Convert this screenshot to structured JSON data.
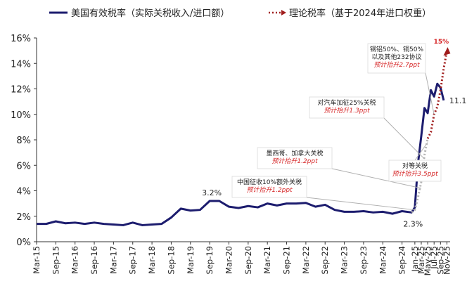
{
  "chart_data": {
    "type": "line",
    "legend_position": "top",
    "grid": false,
    "ylim": [
      0,
      16
    ],
    "y_ticks": [
      "0%",
      "2%",
      "4%",
      "6%",
      "8%",
      "10%",
      "12%",
      "14%",
      "16%"
    ],
    "x_ticks": [
      "Mar-15",
      "Sep-15",
      "Mar-16",
      "Sep-16",
      "Mar-17",
      "Sep-17",
      "Mar-18",
      "Sep-18",
      "Mar-19",
      "Sep-19",
      "Mar-20",
      "Sep-20",
      "Mar-21",
      "Sep-21",
      "Mar-22",
      "Sep-22",
      "Mar-23",
      "Sep-23",
      "Mar-24",
      "Sep-24",
      "Jan-25",
      "Mar-25",
      "May-25",
      "Jul-25",
      "Sep-25",
      "Nov-25"
    ],
    "series": [
      {
        "name": "美国有效税率（实际关税收入/进口额）",
        "color": "#1c1c6e",
        "style": "solid",
        "x": [
          "2015-03",
          "2015-06",
          "2015-09",
          "2015-12",
          "2016-03",
          "2016-06",
          "2016-09",
          "2016-12",
          "2017-03",
          "2017-06",
          "2017-09",
          "2017-12",
          "2018-03",
          "2018-06",
          "2018-09",
          "2018-12",
          "2019-03",
          "2019-06",
          "2019-09",
          "2019-12",
          "2020-03",
          "2020-06",
          "2020-09",
          "2020-12",
          "2021-03",
          "2021-06",
          "2021-09",
          "2021-12",
          "2022-03",
          "2022-06",
          "2022-09",
          "2022-12",
          "2023-03",
          "2023-06",
          "2023-09",
          "2023-12",
          "2024-03",
          "2024-06",
          "2024-09",
          "2024-12",
          "2025-01",
          "2025-02",
          "2025-03",
          "2025-04",
          "2025-05",
          "2025-06",
          "2025-07",
          "2025-08",
          "2025-09",
          "2025-10"
        ],
        "y": [
          1.4,
          1.4,
          1.6,
          1.45,
          1.5,
          1.4,
          1.5,
          1.4,
          1.35,
          1.3,
          1.5,
          1.3,
          1.35,
          1.4,
          1.9,
          2.6,
          2.45,
          2.5,
          3.2,
          3.2,
          2.75,
          2.65,
          2.8,
          2.7,
          3.0,
          2.85,
          3.0,
          3.0,
          3.05,
          2.75,
          2.9,
          2.5,
          2.35,
          2.35,
          2.4,
          2.3,
          2.35,
          2.2,
          2.4,
          2.3,
          2.7,
          6.2,
          8.3,
          10.5,
          10.1,
          11.9,
          11.4,
          12.4,
          12.1,
          11.1
        ]
      },
      {
        "name": "理论税率（基于2024年进口权重）",
        "color": "#a01c1c",
        "style": "dotted",
        "x": [
          "2024-12",
          "2025-01",
          "2025-02",
          "2025-03",
          "2025-04",
          "2025-05",
          "2025-06",
          "2025-07",
          "2025-08",
          "2025-09",
          "2025-10",
          "2025-11"
        ],
        "y": [
          2.3,
          2.5,
          3.5,
          4.7,
          6.8,
          8.1,
          8.6,
          10.0,
          10.6,
          11.9,
          13.6,
          15.0
        ]
      }
    ],
    "point_labels": [
      "3.2%",
      "2.3%",
      "11.1%",
      "15%"
    ],
    "annotations": [
      {
        "lines": [
          "中国征收10%额外关税",
          "预计抬升1.2ppt"
        ]
      },
      {
        "lines": [
          "墨西哥、加拿大关税",
          "预计抬升1.2ppt"
        ]
      },
      {
        "lines": [
          "对汽车加征25%关税",
          "预计抬升1.3ppt"
        ]
      },
      {
        "lines": [
          "钢铝50%、铜50%",
          "以及其他232协议",
          "预计抬升2.7ppt"
        ]
      },
      {
        "lines": [
          "对等关税",
          "预计抬升3.5ppt"
        ]
      }
    ]
  }
}
